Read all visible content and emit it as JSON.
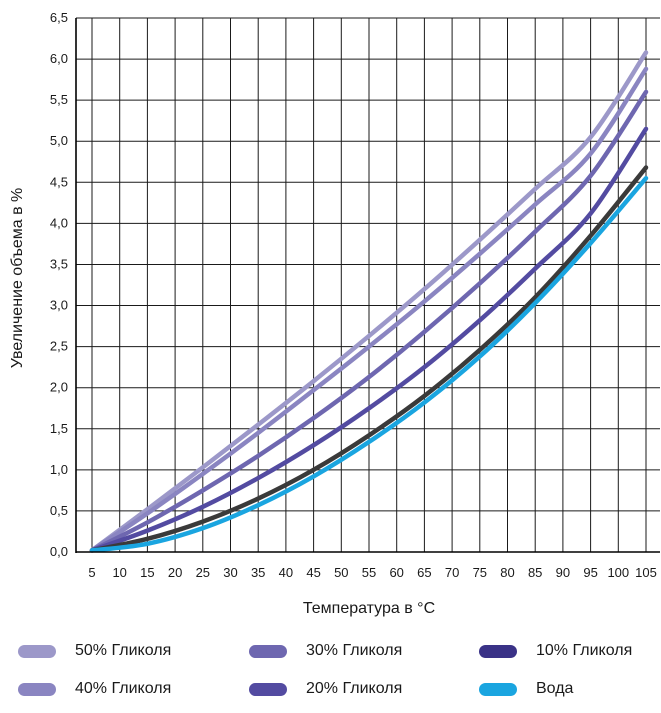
{
  "chart_data": {
    "type": "line",
    "xlabel": "Температура в °C",
    "ylabel": "Увеличение объема в %",
    "xlim": [
      5,
      105
    ],
    "ylim": [
      0,
      6.5
    ],
    "x_ticks": [
      "5",
      "10",
      "15",
      "20",
      "25",
      "30",
      "35",
      "40",
      "45",
      "50",
      "55",
      "60",
      "65",
      "70",
      "75",
      "80",
      "85",
      "90",
      "95",
      "100",
      "105"
    ],
    "y_ticks": [
      "0,0",
      "0,5",
      "1,0",
      "1,5",
      "2,0",
      "2,5",
      "3,0",
      "3,5",
      "4,0",
      "4,5",
      "5,0",
      "5,5",
      "6,0",
      "6,5"
    ],
    "grid": true,
    "legend_position": "bottom",
    "x": [
      5,
      15,
      25,
      35,
      45,
      55,
      65,
      75,
      85,
      95,
      105
    ],
    "series": [
      {
        "name": "50% Гликоля",
        "color": "#9c98c9",
        "values": [
          0.02,
          0.52,
          1.03,
          1.55,
          2.08,
          2.63,
          3.2,
          3.8,
          4.42,
          5.05,
          6.08
        ]
      },
      {
        "name": "40% Гликоля",
        "color": "#8a85c1",
        "values": [
          0.02,
          0.47,
          0.95,
          1.45,
          1.97,
          2.5,
          3.05,
          3.63,
          4.23,
          4.85,
          5.88
        ]
      },
      {
        "name": "30% Гликоля",
        "color": "#6e67b0",
        "values": [
          0.02,
          0.36,
          0.75,
          1.17,
          1.63,
          2.13,
          2.68,
          3.27,
          3.9,
          4.58,
          5.6
        ]
      },
      {
        "name": "20% Гликоля",
        "color": "#534ba1",
        "values": [
          0.02,
          0.26,
          0.55,
          0.9,
          1.3,
          1.75,
          2.25,
          2.82,
          3.45,
          4.12,
          5.15
        ]
      },
      {
        "name": "10% Гликоля",
        "color": "#3a3287",
        "values": [
          0.02,
          0.16,
          0.37,
          0.65,
          1.0,
          1.42,
          1.9,
          2.46,
          3.1,
          3.85,
          4.68
        ]
      },
      {
        "name": "Вода",
        "color": "#1aa5e0",
        "values": [
          0.02,
          0.1,
          0.29,
          0.57,
          0.92,
          1.34,
          1.82,
          2.38,
          3.03,
          3.76,
          4.55
        ]
      }
    ],
    "dark_curve_color": "#3a3a3a"
  }
}
